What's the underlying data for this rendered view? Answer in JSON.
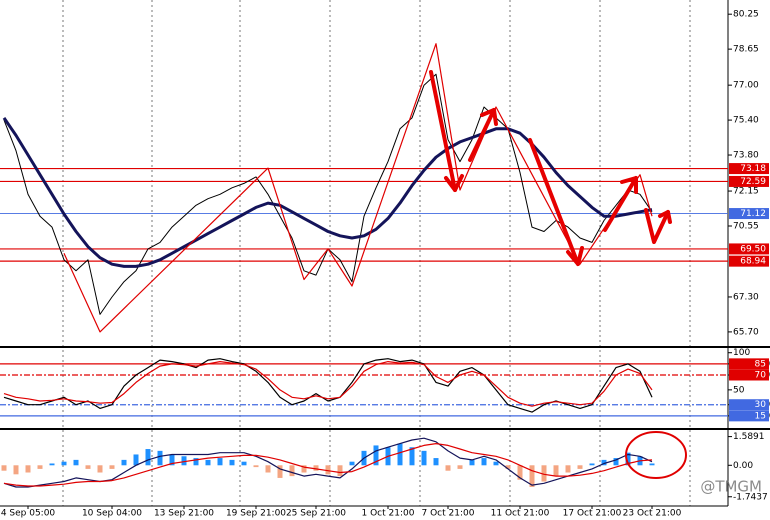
{
  "chart_data": [
    {
      "type": "line",
      "ylim": [
        65.1,
        80.9
      ],
      "yticks": [
        80.25,
        78.65,
        {
          "value": 77,
          "label": "77.00"
        },
        {
          "value": 75.4,
          "label": "75.40"
        },
        {
          "value": 73.8,
          "label": "73.80"
        },
        72.15,
        70.55,
        {
          "value": 67.3,
          "label": "67.30"
        },
        {
          "value": 65.7,
          "label": "65.70"
        }
      ],
      "levels": [
        {
          "value": 73.18,
          "color": "#e00000"
        },
        {
          "value": 72.59,
          "color": "#e00000"
        },
        {
          "value": 71.12,
          "color": "#4169e1"
        },
        {
          "value": 69.5,
          "label": "69.50",
          "color": "#e00000"
        },
        {
          "value": 68.94,
          "color": "#e00000"
        }
      ],
      "series": [
        {
          "color": "#000000",
          "values": [
            75.4,
            74,
            72,
            71,
            70.5,
            69,
            68.5,
            69,
            66.5,
            67.3,
            68,
            68.5,
            69.5,
            69.8,
            70.5,
            71,
            71.5,
            71.8,
            72,
            72.3,
            72.5,
            72.8,
            72,
            71,
            70,
            68.5,
            68.3,
            69.5,
            69,
            68,
            71,
            72.3,
            73.5,
            75,
            75.5,
            77,
            77.5,
            74.5,
            73.5,
            74.5,
            76,
            75.5,
            75,
            73,
            70.5,
            70.3,
            70.8,
            70.5,
            70,
            69.8,
            70.8,
            71.5,
            72.2,
            72,
            71.2
          ]
        },
        {
          "color": "#14145a",
          "values": [
            75.5,
            74.7,
            73.8,
            72.9,
            72.0,
            71.1,
            70.3,
            69.6,
            69.1,
            68.8,
            68.7,
            68.7,
            68.8,
            69.0,
            69.3,
            69.6,
            69.9,
            70.2,
            70.5,
            70.8,
            71.1,
            71.4,
            71.6,
            71.5,
            71.2,
            70.9,
            70.6,
            70.3,
            70.1,
            70.0,
            70.1,
            70.4,
            70.9,
            71.6,
            72.4,
            73.1,
            73.7,
            74.1,
            74.4,
            74.6,
            74.8,
            75.0,
            75.0,
            74.8,
            74.3,
            73.7,
            73.0,
            72.4,
            71.9,
            71.4,
            71.0,
            71.0,
            71.1,
            71.2,
            71.3
          ]
        }
      ],
      "zigzag": {
        "color": "#e00000",
        "x": [
          5,
          8,
          22,
          25,
          27,
          29,
          36,
          38,
          41,
          48,
          53,
          54
        ],
        "values": [
          69.3,
          65.7,
          73.2,
          68.1,
          69.5,
          67.8,
          78.9,
          72.2,
          76.0,
          68.8,
          72.9,
          71.0
        ]
      }
    },
    {
      "type": "line",
      "ylim": [
        0,
        105
      ],
      "yticks": [
        100,
        {
          "value": 85,
          "label": "85.0000"
        },
        {
          "value": 70,
          "label": "70.0000"
        },
        50,
        {
          "value": 30,
          "label": "30.0000"
        },
        {
          "value": 15,
          "label": "15.0000"
        }
      ],
      "levels": [
        {
          "value": 85,
          "color": "#e00000"
        },
        {
          "value": 70,
          "color": "#e00000"
        },
        {
          "value": 30,
          "color": "#4169e1"
        },
        {
          "value": 15,
          "color": "#4169e1"
        }
      ],
      "series": [
        {
          "color": "#000000",
          "values": [
            40,
            35,
            30,
            30,
            35,
            40,
            30,
            35,
            25,
            30,
            55,
            70,
            80,
            90,
            88,
            85,
            80,
            90,
            92,
            88,
            85,
            75,
            60,
            40,
            30,
            35,
            45,
            35,
            40,
            60,
            85,
            90,
            92,
            88,
            90,
            85,
            60,
            55,
            75,
            80,
            70,
            50,
            30,
            25,
            20,
            30,
            35,
            30,
            25,
            30,
            55,
            80,
            85,
            75,
            40
          ]
        },
        {
          "color": "#e00000",
          "values": [
            45,
            40,
            38,
            35,
            36,
            38,
            35,
            34,
            32,
            33,
            45,
            60,
            72,
            82,
            85,
            84,
            82,
            85,
            88,
            86,
            84,
            78,
            65,
            50,
            40,
            38,
            42,
            38,
            40,
            55,
            75,
            84,
            88,
            86,
            87,
            84,
            68,
            60,
            70,
            75,
            70,
            55,
            40,
            32,
            28,
            32,
            34,
            32,
            30,
            32,
            48,
            70,
            78,
            72,
            50
          ]
        }
      ]
    },
    {
      "type": "bar",
      "ylim": [
        -2.2,
        1.9
      ],
      "yticks": [
        1.5891,
        {
          "value": 0,
          "label": "0.00"
        },
        -1.7437
      ],
      "categories": [
        null,
        null,
        "4 Sep 05:00",
        null,
        null,
        null,
        null,
        null,
        null,
        "10 Sep 04:00",
        null,
        null,
        null,
        null,
        null,
        "13 Sep 21:00",
        null,
        null,
        null,
        null,
        null,
        "19 Sep 21:00",
        null,
        null,
        null,
        null,
        "25 Sep 21:00",
        null,
        null,
        null,
        null,
        null,
        "1 Oct 21:00",
        null,
        null,
        null,
        null,
        "7 Oct 21:00",
        null,
        null,
        null,
        null,
        null,
        "11 Oct 21:00",
        null,
        null,
        null,
        null,
        null,
        "17 Oct 21:00",
        null,
        null,
        null,
        null,
        "23 Oct 21:00"
      ],
      "histogram": {
        "colors": [
          "#1e90ff",
          "#f4a582"
        ],
        "values": [
          -0.3,
          -0.5,
          -0.4,
          -0.2,
          0.1,
          0.2,
          0.3,
          -0.2,
          -0.4,
          -0.2,
          0.3,
          0.6,
          0.9,
          0.8,
          0.6,
          0.5,
          0.4,
          0.3,
          0.4,
          0.3,
          0.2,
          -0.1,
          -0.4,
          -0.7,
          -0.6,
          -0.4,
          -0.3,
          -0.5,
          -0.6,
          0.2,
          0.8,
          1.1,
          1.0,
          1.2,
          1.0,
          0.8,
          0.4,
          -0.3,
          -0.2,
          0.3,
          0.4,
          0.2,
          -0.2,
          -0.8,
          -1.2,
          -0.9,
          -0.6,
          -0.4,
          -0.2,
          0.1,
          0.3,
          0.4,
          0.7,
          0.5,
          0.1
        ]
      },
      "series": [
        {
          "color": "#14145a",
          "values": [
            -1.0,
            -1.2,
            -1.2,
            -1.1,
            -1.0,
            -0.9,
            -0.7,
            -0.8,
            -0.9,
            -0.8,
            -0.4,
            0,
            0.3,
            0.5,
            0.6,
            0.6,
            0.6,
            0.6,
            0.7,
            0.7,
            0.7,
            0.5,
            0.2,
            -0.2,
            -0.4,
            -0.6,
            -0.5,
            -0.6,
            -0.7,
            -0.2,
            0.4,
            0.8,
            1.0,
            1.2,
            1.4,
            1.5,
            1.3,
            0.8,
            0.4,
            0.3,
            0.5,
            0.3,
            -0.2,
            -0.7,
            -1.1,
            -1.0,
            -0.8,
            -0.6,
            -0.4,
            -0.2,
            0.1,
            0.3,
            0.6,
            0.5,
            0.2
          ]
        },
        {
          "color": "#e00000",
          "values": [
            -1.0,
            -1.1,
            -1.15,
            -1.15,
            -1.1,
            -1.05,
            -0.95,
            -0.9,
            -0.9,
            -0.85,
            -0.7,
            -0.5,
            -0.3,
            -0.1,
            0.1,
            0.2,
            0.3,
            0.4,
            0.45,
            0.5,
            0.55,
            0.55,
            0.45,
            0.3,
            0.1,
            -0.1,
            -0.2,
            -0.3,
            -0.4,
            -0.35,
            -0.1,
            0.2,
            0.5,
            0.7,
            0.9,
            1.1,
            1.2,
            1.1,
            0.9,
            0.7,
            0.6,
            0.5,
            0.3,
            0,
            -0.3,
            -0.5,
            -0.6,
            -0.6,
            -0.55,
            -0.45,
            -0.3,
            -0.1,
            0.1,
            0.25,
            0.3
          ]
        }
      ]
    }
  ],
  "watermark": "@TMGM"
}
